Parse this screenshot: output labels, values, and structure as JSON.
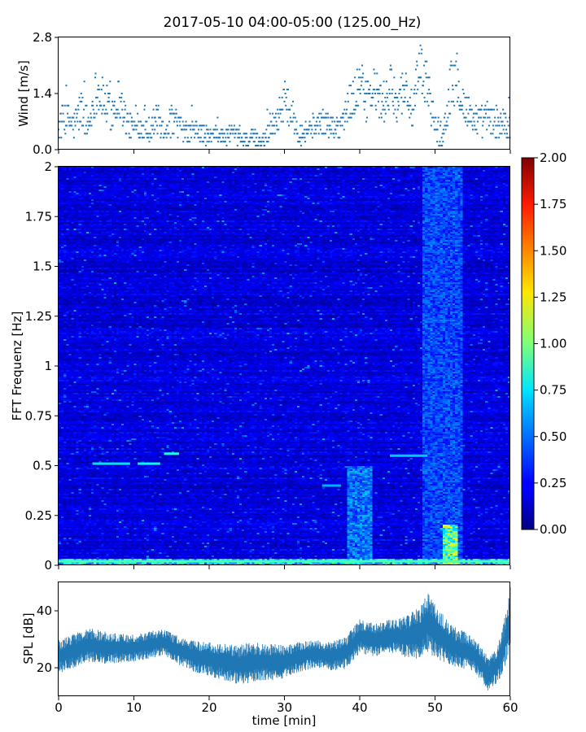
{
  "title": "2017-05-10 04:00-05:00 (125.00_Hz)",
  "chart_data": [
    {
      "type": "scatter",
      "ylabel": "Wind [m/s]",
      "xlim": [
        0,
        60
      ],
      "ylim": [
        0,
        2.8
      ],
      "yticks": [
        "0.0",
        "1.4",
        "2.8"
      ],
      "quantization_step": 0.1,
      "series": [
        {
          "points": [
            [
              0,
              0.6
            ],
            [
              1,
              0.8
            ],
            [
              2,
              0.6
            ],
            [
              3,
              1.0
            ],
            [
              4,
              0.6
            ],
            [
              5,
              1.5
            ],
            [
              6,
              1.2
            ],
            [
              7,
              0.9
            ],
            [
              8,
              1.3
            ],
            [
              9,
              0.7
            ],
            [
              10,
              0.5
            ],
            [
              11,
              0.6
            ],
            [
              12,
              0.5
            ],
            [
              13,
              0.8
            ],
            [
              14,
              0.5
            ],
            [
              15,
              0.7
            ],
            [
              16,
              0.6
            ],
            [
              17,
              0.4
            ],
            [
              18,
              0.5
            ],
            [
              19,
              0.4
            ],
            [
              20,
              0.3
            ],
            [
              21,
              0.4
            ],
            [
              22,
              0.3
            ],
            [
              23,
              0.4
            ],
            [
              24,
              0.3
            ],
            [
              25,
              0.2
            ],
            [
              26,
              0.3
            ],
            [
              27,
              0.2
            ],
            [
              28,
              0.5
            ],
            [
              29,
              0.8
            ],
            [
              30,
              1.2
            ],
            [
              31,
              0.9
            ],
            [
              32,
              0.4
            ],
            [
              33,
              0.5
            ],
            [
              34,
              0.6
            ],
            [
              35,
              0.7
            ],
            [
              36,
              0.6
            ],
            [
              37,
              0.6
            ],
            [
              38,
              0.8
            ],
            [
              39,
              1.3
            ],
            [
              40,
              1.6
            ],
            [
              41,
              1.2
            ],
            [
              42,
              1.5
            ],
            [
              43,
              1.1
            ],
            [
              44,
              1.5
            ],
            [
              45,
              1.2
            ],
            [
              46,
              1.6
            ],
            [
              47,
              0.9
            ],
            [
              48,
              2.0
            ],
            [
              49,
              1.6
            ],
            [
              50,
              0.6
            ],
            [
              51,
              0.3
            ],
            [
              52,
              1.5
            ],
            [
              53,
              1.7
            ],
            [
              54,
              1.0
            ],
            [
              55,
              0.8
            ],
            [
              56,
              0.7
            ],
            [
              57,
              0.8
            ],
            [
              58,
              0.6
            ],
            [
              59,
              0.7
            ],
            [
              60,
              0.5
            ]
          ],
          "spread": [
            [
              0,
              0.4
            ],
            [
              1,
              0.4
            ],
            [
              2,
              0.4
            ],
            [
              3,
              0.5
            ],
            [
              4,
              0.4
            ],
            [
              5,
              0.6
            ],
            [
              6,
              0.5
            ],
            [
              7,
              0.5
            ],
            [
              8,
              0.5
            ],
            [
              9,
              0.4
            ],
            [
              10,
              0.3
            ],
            [
              11,
              0.3
            ],
            [
              12,
              0.3
            ],
            [
              13,
              0.4
            ],
            [
              14,
              0.3
            ],
            [
              15,
              0.4
            ],
            [
              16,
              0.3
            ],
            [
              17,
              0.3
            ],
            [
              18,
              0.3
            ],
            [
              19,
              0.3
            ],
            [
              20,
              0.2
            ],
            [
              21,
              0.2
            ],
            [
              22,
              0.2
            ],
            [
              23,
              0.2
            ],
            [
              24,
              0.2
            ],
            [
              25,
              0.2
            ],
            [
              26,
              0.2
            ],
            [
              27,
              0.2
            ],
            [
              28,
              0.3
            ],
            [
              29,
              0.4
            ],
            [
              30,
              0.5
            ],
            [
              31,
              0.4
            ],
            [
              32,
              0.3
            ],
            [
              33,
              0.3
            ],
            [
              34,
              0.3
            ],
            [
              35,
              0.3
            ],
            [
              36,
              0.3
            ],
            [
              37,
              0.3
            ],
            [
              38,
              0.4
            ],
            [
              39,
              0.5
            ],
            [
              40,
              0.7
            ],
            [
              41,
              0.5
            ],
            [
              42,
              0.6
            ],
            [
              43,
              0.5
            ],
            [
              44,
              0.6
            ],
            [
              45,
              0.5
            ],
            [
              46,
              0.6
            ],
            [
              47,
              0.5
            ],
            [
              48,
              0.7
            ],
            [
              49,
              0.6
            ],
            [
              50,
              0.4
            ],
            [
              51,
              0.3
            ],
            [
              52,
              0.6
            ],
            [
              53,
              0.6
            ],
            [
              54,
              0.5
            ],
            [
              55,
              0.4
            ],
            [
              56,
              0.4
            ],
            [
              57,
              0.4
            ],
            [
              58,
              0.4
            ],
            [
              59,
              0.4
            ],
            [
              60,
              0.3
            ]
          ],
          "color": "#1f77b4"
        }
      ]
    },
    {
      "type": "heatmap",
      "ylabel": "FFT Frequenz [Hz]",
      "xlim": [
        0,
        60
      ],
      "ylim": [
        0,
        2
      ],
      "yticks": [
        "0",
        "0.25",
        "0.5",
        "0.75",
        "1",
        "1.25",
        "1.5",
        "1.75",
        "2"
      ],
      "colormap": "jet",
      "colorbar": {
        "range": [
          0,
          2
        ],
        "ticks": [
          "0.00",
          "0.25",
          "0.50",
          "0.75",
          "1.00",
          "1.25",
          "1.50",
          "1.75",
          "2.00"
        ]
      },
      "base_intensity": 0.18,
      "bright_bands": [
        {
          "x": [
            38.5,
            41.5
          ],
          "y": [
            0,
            0.5
          ],
          "level": 0.55
        },
        {
          "x": [
            48.5,
            53.5
          ],
          "y": [
            0,
            2
          ],
          "level": 0.45
        },
        {
          "x": [
            51,
            53
          ],
          "y": [
            0,
            0.2
          ],
          "level": 1.1
        }
      ],
      "notable_lines": [
        {
          "x": [
            4.5,
            9.5
          ],
          "y": 0.51,
          "level": 0.7
        },
        {
          "x": [
            10.5,
            13.5
          ],
          "y": 0.51,
          "level": 0.75
        },
        {
          "x": [
            14,
            16
          ],
          "y": 0.56,
          "level": 0.8
        },
        {
          "x": [
            35,
            37.5
          ],
          "y": 0.4,
          "level": 0.6
        },
        {
          "x": [
            44,
            49
          ],
          "y": 0.55,
          "level": 0.65
        },
        {
          "x": [
            0,
            60
          ],
          "y": 0.02,
          "level": 0.9
        }
      ]
    },
    {
      "type": "area",
      "ylabel": "SPL [dB]",
      "xlabel": "time [min]",
      "xlim": [
        0,
        60
      ],
      "ylim": [
        10,
        50
      ],
      "xticks": [
        "0",
        "10",
        "20",
        "30",
        "40",
        "50",
        "60"
      ],
      "yticks": [
        "20",
        "40"
      ],
      "color": "#1f77b4",
      "series": [
        {
          "center": [
            [
              0,
              24
            ],
            [
              2,
              26
            ],
            [
              4,
              28
            ],
            [
              6,
              27
            ],
            [
              8,
              27
            ],
            [
              10,
              27
            ],
            [
              12,
              28
            ],
            [
              14,
              29
            ],
            [
              16,
              26
            ],
            [
              18,
              24
            ],
            [
              20,
              23
            ],
            [
              22,
              22
            ],
            [
              24,
              21
            ],
            [
              26,
              22
            ],
            [
              28,
              22
            ],
            [
              30,
              22
            ],
            [
              32,
              24
            ],
            [
              34,
              25
            ],
            [
              36,
              24
            ],
            [
              38,
              25
            ],
            [
              40,
              31
            ],
            [
              42,
              30
            ],
            [
              44,
              31
            ],
            [
              46,
              31
            ],
            [
              48,
              32
            ],
            [
              49,
              36
            ],
            [
              50,
              33
            ],
            [
              52,
              28
            ],
            [
              54,
              26
            ],
            [
              55,
              25
            ],
            [
              56,
              22
            ],
            [
              57,
              18
            ],
            [
              58,
              20
            ],
            [
              59,
              26
            ],
            [
              60,
              38
            ]
          ],
          "spread": [
            [
              0,
              5
            ],
            [
              5,
              5
            ],
            [
              10,
              4
            ],
            [
              15,
              4
            ],
            [
              20,
              5
            ],
            [
              25,
              6
            ],
            [
              30,
              5
            ],
            [
              35,
              4
            ],
            [
              40,
              5
            ],
            [
              45,
              5
            ],
            [
              49,
              9
            ],
            [
              52,
              6
            ],
            [
              56,
              5
            ],
            [
              58,
              5
            ],
            [
              60,
              9
            ]
          ]
        }
      ]
    }
  ]
}
